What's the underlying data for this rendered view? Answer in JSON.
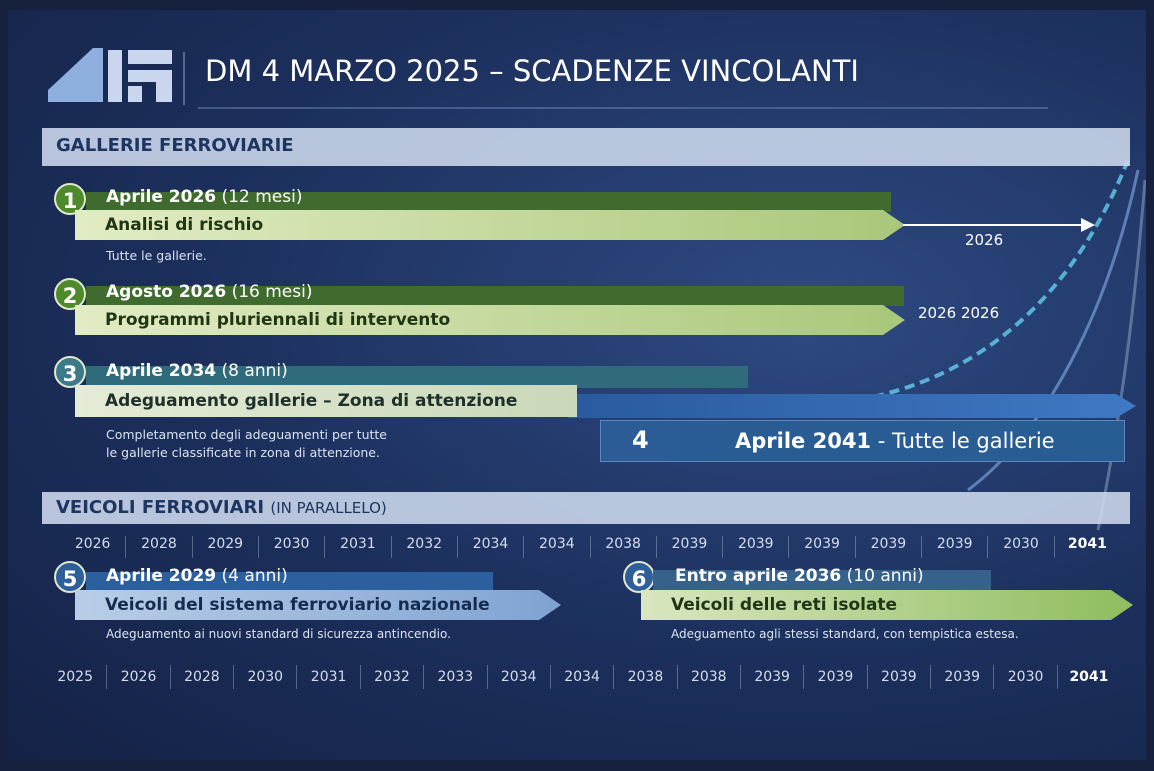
{
  "header": {
    "title": "DM 4 MARZO 2025 – SCADENZE VINCOLANTI"
  },
  "tunnels": {
    "title": "GALLERIE FERROVIARIE",
    "items": [
      {
        "number": "1",
        "date": "Aprile 2026",
        "duration": "(12 mesi)",
        "label": "Analisi di rischio",
        "description": "Tutte le gallerie.",
        "marker": "2026"
      },
      {
        "number": "2",
        "date": "Agosto 2026",
        "duration": "(16 mesi)",
        "label": "Programmi pluriennali di intervento",
        "marker": "2026 2026"
      },
      {
        "number": "3",
        "date": "Aprile 2034",
        "duration": "(8 anni)",
        "label": "Adeguamento gallerie – Zona di attenzione",
        "description": [
          "Completamento degli adeguamenti per tutte",
          "le gallerie classificate in zona di attenzione."
        ]
      },
      {
        "number": "4",
        "date": "Aprile 2041",
        "label": "- Tutte le gallerie"
      }
    ]
  },
  "vehicles": {
    "title": "VEICOLI FERROVIARI",
    "subtitle": "(IN PARALLELO)",
    "years_top": [
      "2026",
      "2028",
      "2029",
      "2030",
      "2031",
      "2032",
      "2034",
      "2034",
      "2038",
      "2039",
      "2039",
      "2039",
      "2039",
      "2039",
      "2030",
      "2041"
    ],
    "items": [
      {
        "number": "5",
        "date": "Aprile 2029",
        "duration": "(4 anni)",
        "label": "Veicoli del sistema ferroviario nazionale",
        "description": "Adeguamento ai nuovi standard di sicurezza antincendio."
      },
      {
        "number": "6",
        "date": "Entro aprile 2036",
        "duration": "(10 anni)",
        "label": "Veicoli delle reti isolate",
        "description": "Adeguamento agli stessi standard, con tempistica estesa."
      }
    ],
    "years_bottom": [
      "2025",
      "2026",
      "2028",
      "2030",
      "2031",
      "2032",
      "2033",
      "2034",
      "2034",
      "2038",
      "2038",
      "2039",
      "2039",
      "2039",
      "2039",
      "2030",
      "2041"
    ]
  }
}
